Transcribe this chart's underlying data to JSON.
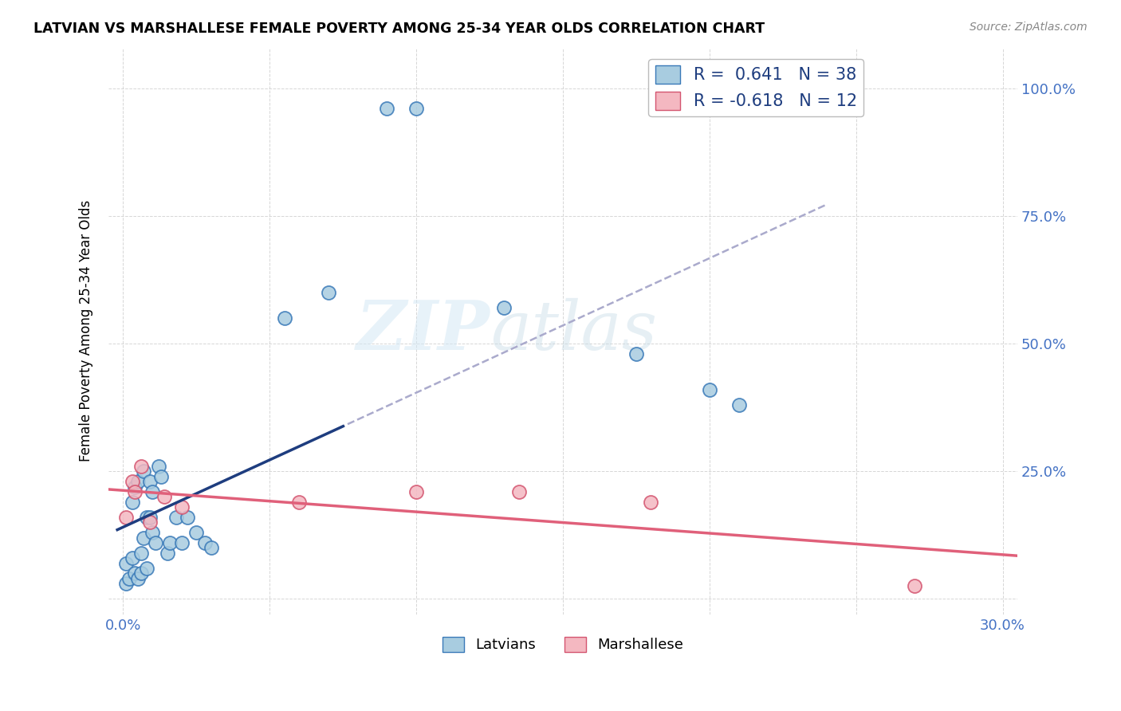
{
  "title": "LATVIAN VS MARSHALLESE FEMALE POVERTY AMONG 25-34 YEAR OLDS CORRELATION CHART",
  "source": "Source: ZipAtlas.com",
  "ylabel": "Female Poverty Among 25-34 Year Olds",
  "xlim": [
    -0.005,
    0.305
  ],
  "ylim": [
    -0.03,
    1.08
  ],
  "latvian_R": "0.641",
  "latvian_N": "38",
  "marshallese_R": "-0.618",
  "marshallese_N": "12",
  "latvian_color": "#a8cce0",
  "latvian_edge": "#3a7ab8",
  "marshallese_color": "#f4b8c1",
  "marshallese_edge": "#d45570",
  "latvian_trend_color": "#1e3d7f",
  "marshallese_trend_color": "#e0607a",
  "dashed_color": "#aaaacc",
  "watermark_color": "#d5e8f5",
  "latvian_x": [
    0.001,
    0.001,
    0.002,
    0.003,
    0.003,
    0.004,
    0.004,
    0.005,
    0.005,
    0.006,
    0.006,
    0.007,
    0.007,
    0.008,
    0.008,
    0.009,
    0.009,
    0.01,
    0.01,
    0.011,
    0.012,
    0.013,
    0.015,
    0.016,
    0.018,
    0.02,
    0.022,
    0.025,
    0.028,
    0.03,
    0.055,
    0.07,
    0.09,
    0.1,
    0.13,
    0.175,
    0.2,
    0.21
  ],
  "latvian_y": [
    0.03,
    0.07,
    0.04,
    0.08,
    0.19,
    0.05,
    0.22,
    0.04,
    0.23,
    0.05,
    0.09,
    0.12,
    0.25,
    0.06,
    0.16,
    0.16,
    0.23,
    0.13,
    0.21,
    0.11,
    0.26,
    0.24,
    0.09,
    0.11,
    0.16,
    0.11,
    0.16,
    0.13,
    0.11,
    0.1,
    0.55,
    0.6,
    0.96,
    0.96,
    0.57,
    0.48,
    0.41,
    0.38
  ],
  "marshallese_x": [
    0.001,
    0.003,
    0.004,
    0.006,
    0.009,
    0.014,
    0.02,
    0.06,
    0.1,
    0.135,
    0.18,
    0.27
  ],
  "marshallese_y": [
    0.16,
    0.23,
    0.21,
    0.26,
    0.15,
    0.2,
    0.18,
    0.19,
    0.21,
    0.21,
    0.19,
    0.025
  ],
  "xtick_pos": [
    0.0,
    0.05,
    0.1,
    0.15,
    0.2,
    0.25,
    0.3
  ],
  "xtick_labels": [
    "0.0%",
    "",
    "",
    "",
    "",
    "",
    "30.0%"
  ],
  "ytick_pos": [
    0.0,
    0.25,
    0.5,
    0.75,
    1.0
  ],
  "ytick_labels_right": [
    "",
    "25.0%",
    "50.0%",
    "75.0%",
    "100.0%"
  ],
  "axis_label_color": "#4472c4",
  "legend_text_color": "#1e3d7f",
  "grid_color": "#cccccc",
  "bg_color": "#ffffff"
}
